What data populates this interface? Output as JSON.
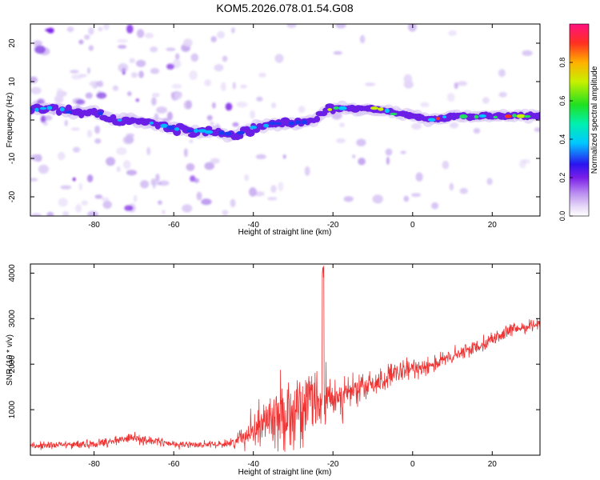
{
  "title": "KOM5.2026.078.01.54.G08",
  "colors": {
    "snr_line": "#ee3333",
    "axis": "#000000",
    "background": "#ffffff",
    "spectrum_low": "#dccbf2",
    "spectrum_mid": "#7a1ee8",
    "spectrum_high": "#ff1a1a"
  },
  "chart_data": [
    {
      "type": "heatmap",
      "xlabel": "Height of straight line (km)",
      "ylabel": "Frequency (Hz)",
      "xlim": [
        -96,
        32
      ],
      "ylim": [
        -25,
        25
      ],
      "x_ticks": [
        -80,
        -60,
        -40,
        -20,
        0,
        20
      ],
      "y_ticks": [
        20,
        10,
        0,
        -10,
        -20
      ],
      "ridge": {
        "x": [
          -96,
          -90,
          -85,
          -80,
          -75,
          -70,
          -65,
          -60,
          -55,
          -50,
          -45,
          -40,
          -35,
          -30,
          -25,
          -22,
          -20,
          -15,
          -10,
          -5,
          0,
          5,
          10,
          15,
          20,
          25,
          32
        ],
        "y": [
          3,
          3,
          2,
          2,
          0,
          0,
          -1,
          -2,
          -3,
          -3,
          -4,
          -2,
          -1,
          -1,
          0,
          2,
          3,
          3,
          3,
          2,
          1,
          0,
          1,
          1,
          1,
          1,
          1
        ]
      },
      "colorbar": {
        "label": "Normalized spectral amplitude",
        "ticks": [
          0.0,
          0.2,
          0.4,
          0.6,
          0.8
        ],
        "range": [
          0,
          1
        ],
        "colormap": "rainbow"
      }
    },
    {
      "type": "line",
      "xlabel": "Height of straight line (km)",
      "ylabel": "SNR (10 * v/v)",
      "xlim": [
        -96,
        32
      ],
      "ylim": [
        0,
        4200
      ],
      "x_ticks": [
        -80,
        -60,
        -40,
        -20,
        0,
        20
      ],
      "y_ticks": [
        1000,
        2000,
        3000,
        4000
      ],
      "series": [
        {
          "name": "SNR",
          "trend_x": [
            -96,
            -90,
            -80,
            -70,
            -60,
            -50,
            -45,
            -40,
            -35,
            -30,
            -25,
            -20,
            -15,
            -10,
            -5,
            0,
            5,
            10,
            15,
            20,
            25,
            32
          ],
          "trend_y": [
            200,
            220,
            250,
            380,
            240,
            230,
            270,
            600,
            850,
            1000,
            1100,
            1250,
            1400,
            1550,
            1750,
            1900,
            2000,
            2150,
            2350,
            2550,
            2750,
            2900
          ],
          "noise_x": [
            -96,
            -90,
            -80,
            -70,
            -60,
            -50,
            -45,
            -40,
            -35,
            -30,
            -25,
            -20,
            -15,
            -10,
            -5,
            0,
            5,
            10,
            15,
            20,
            25,
            32
          ],
          "noise_y": [
            80,
            90,
            90,
            120,
            80,
            70,
            120,
            400,
            700,
            800,
            750,
            500,
            350,
            300,
            250,
            220,
            200,
            180,
            160,
            150,
            140,
            120
          ],
          "peak": {
            "x": -22.5,
            "y": 4200
          }
        }
      ]
    }
  ]
}
